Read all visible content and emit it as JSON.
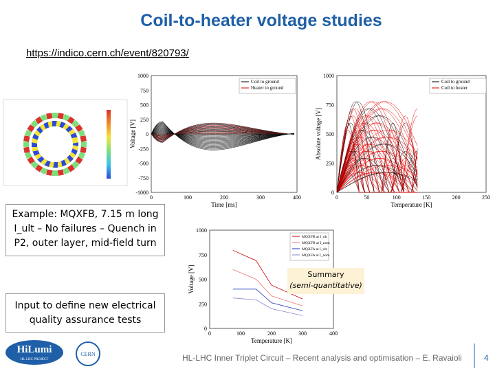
{
  "header": {
    "title": "Coil-to-heater voltage studies",
    "link": "https://indico.cern.ch/event/820793/"
  },
  "plots": {
    "middle": {
      "legend": [
        "Coil to ground",
        "Heater to ground"
      ],
      "y_label": "Voltage [V]",
      "x_label": "Time [ms]",
      "y_ticks": [
        "1000",
        "750",
        "500",
        "250",
        "0",
        "-250",
        "-500",
        "-750",
        "-1000"
      ],
      "x_ticks": [
        "0",
        "100",
        "200",
        "300",
        "400"
      ]
    },
    "right": {
      "legend": [
        "Coil to ground",
        "Coil to heater"
      ],
      "y_label": "Absolute voltage [V]",
      "x_label": "Temperature [K]",
      "y_ticks": [
        "1000",
        "750",
        "500",
        "250",
        "0"
      ],
      "x_ticks": [
        "0",
        "50",
        "100",
        "150",
        "200",
        "250"
      ]
    },
    "bottom": {
      "legend": [
        "MQXFB at I_ult",
        "MQXFB at I_nom",
        "MQXFA at I_ult",
        "MQXFA at I_nom"
      ],
      "y_label": "Voltage [V]",
      "x_label": "Temperature [K]",
      "y_ticks": [
        "1000",
        "750",
        "500",
        "250",
        "0"
      ],
      "x_ticks": [
        "0",
        "100",
        "200",
        "300",
        "400"
      ]
    }
  },
  "boxes": {
    "example": "Example: MQXFB, 7.15 m long I_ult – No failures – Quench in P2, outer layer, mid-field turn",
    "summary_title": "Summary",
    "summary_note": "(semi-quantitative)",
    "input": "Input to define new electrical quality assurance tests"
  },
  "footer": {
    "text": "HL-LHC Inner Triplet Circuit – Recent analysis and optimisation – E. Ravaioli",
    "page": "4",
    "logo_hilumi": "HiLumi",
    "logo_project": "HL-LHC PROJECT",
    "logo_cern": "CERN"
  }
}
